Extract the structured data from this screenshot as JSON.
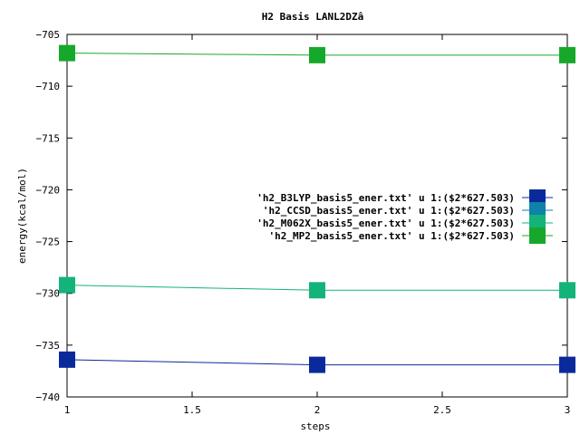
{
  "chart_data": {
    "type": "line",
    "title": "H2 Basis LANL2DZâ",
    "xlabel": "steps",
    "ylabel": "energy(kcal/mol)",
    "xlim": [
      1,
      3
    ],
    "ylim": [
      -740,
      -705
    ],
    "x_ticks": [
      1,
      1.5,
      2,
      2.5,
      3
    ],
    "x_tick_labels": [
      "1",
      "1.5",
      "2",
      "2.5",
      "3"
    ],
    "y_ticks": [
      -740,
      -735,
      -730,
      -725,
      -720,
      -715,
      -710,
      -705
    ],
    "y_tick_labels": [
      "−740",
      "−735",
      "−730",
      "−725",
      "−720",
      "−715",
      "−710",
      "−705"
    ],
    "legend_position": "right",
    "x": [
      1,
      2,
      3
    ],
    "series": [
      {
        "name": "'h2_B3LYP_basis5_ener.txt' u 1:($2*627.503)",
        "color": "#0a2a9c",
        "values": [
          -736.4,
          -736.9,
          -736.9
        ]
      },
      {
        "name": "'h2_CCSD_basis5_ener.txt' u 1:($2*627.503)",
        "color": "#0e82a8",
        "values": [
          null,
          null,
          null
        ]
      },
      {
        "name": "'h2_M062X_basis5_ener.txt' u 1:($2*627.503)",
        "color": "#14b37a",
        "values": [
          -729.2,
          -729.7,
          -729.7
        ]
      },
      {
        "name": "'h2_MP2_basis5_ener.txt' u 1:($2*627.503)",
        "color": "#16a82a",
        "values": [
          -706.8,
          -707.0,
          -707.0
        ]
      }
    ]
  }
}
